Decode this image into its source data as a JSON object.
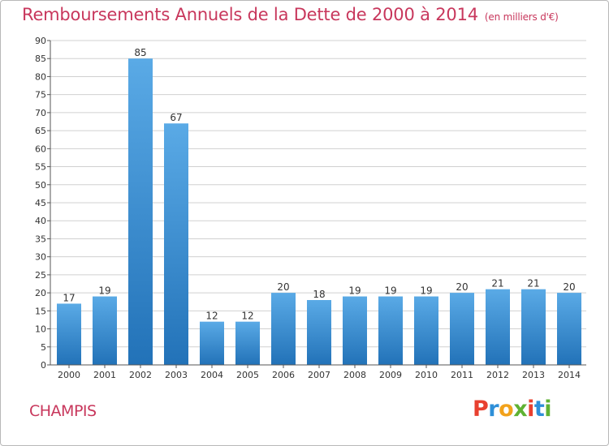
{
  "header": {
    "title": "Remboursements Annuels de la Dette de 2000 à 2014",
    "unit": "(en milliers d'€)"
  },
  "commune": "CHAMPIS",
  "logo": {
    "text": "Proxiti",
    "letters": [
      {
        "char": "P",
        "color": "#e8402f"
      },
      {
        "char": "r",
        "color": "#2e8fd8"
      },
      {
        "char": "o",
        "color": "#f2a21b"
      },
      {
        "char": "x",
        "color": "#5fb233"
      },
      {
        "char": "i",
        "color": "#e8402f"
      },
      {
        "char": "t",
        "color": "#2e8fd8"
      },
      {
        "char": "i",
        "color": "#5fb233"
      }
    ]
  },
  "colors": {
    "title": "#c8375c",
    "bar_top": "#5aaae6",
    "bar_bottom": "#2272b8",
    "grid": "#d0d0d0"
  },
  "chart_data": {
    "type": "bar",
    "title": "Remboursements Annuels de la Dette de 2000 à 2014",
    "xlabel": "",
    "ylabel": "en milliers d'€",
    "categories": [
      "2000",
      "2001",
      "2002",
      "2003",
      "2004",
      "2005",
      "2006",
      "2007",
      "2008",
      "2009",
      "2010",
      "2011",
      "2012",
      "2013",
      "2014"
    ],
    "values": [
      17,
      19,
      85,
      67,
      12,
      12,
      20,
      18,
      19,
      19,
      19,
      20,
      21,
      21,
      20
    ],
    "ylim": [
      0,
      90
    ],
    "yticks": [
      0,
      5,
      10,
      15,
      20,
      25,
      30,
      35,
      40,
      45,
      50,
      55,
      60,
      65,
      70,
      75,
      80,
      85,
      90
    ],
    "grid": true
  }
}
